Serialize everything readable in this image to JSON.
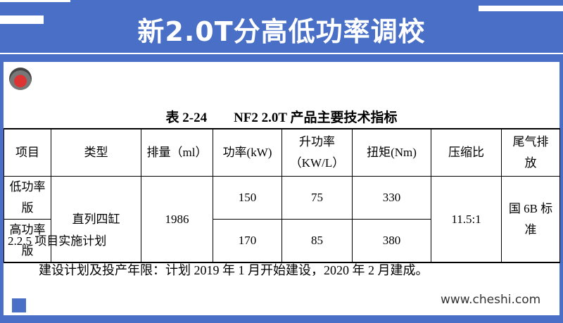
{
  "header": {
    "title": "新2.0T分高低功率调校"
  },
  "caption": "表 2-24　　NF2 2.0T 产品主要技术指标",
  "table": {
    "headers": [
      [
        "项目"
      ],
      [
        "类型"
      ],
      [
        "排量（ml）"
      ],
      [
        "功率(kW)"
      ],
      [
        "升功率",
        "（KW/L）"
      ],
      [
        "扭矩(Nm)"
      ],
      [
        "压缩比"
      ],
      [
        "尾气排",
        "放"
      ]
    ],
    "rows": [
      [
        "低功率版",
        "直列四缸",
        "1986",
        "150",
        "75",
        "330",
        "11.5:1",
        [
          "国 6B 标",
          "准"
        ]
      ],
      [
        "高功率版",
        "170",
        "85",
        "380"
      ]
    ]
  },
  "section": "2.2.5  项目实施计划",
  "paragraph": "建设计划及投产年限：计划 2019 年 1 月开始建设，2020 年 2 月建成。",
  "watermark": "www.cheshi.com"
}
